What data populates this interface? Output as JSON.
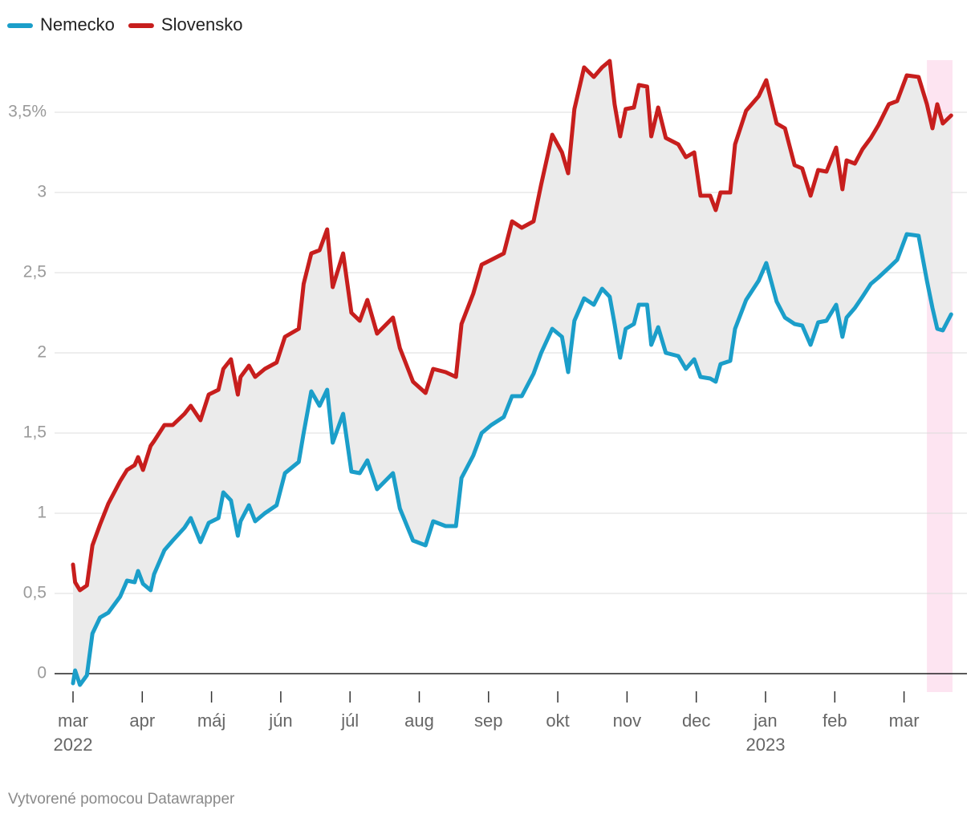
{
  "chart_data": {
    "type": "line",
    "x": [
      0,
      0.03,
      0.1,
      0.2,
      0.28,
      0.39,
      0.51,
      0.68,
      0.78,
      0.89,
      0.94,
      1.01,
      1.12,
      1.17,
      1.32,
      1.44,
      1.61,
      1.7,
      1.84,
      1.96,
      2.1,
      2.17,
      2.28,
      2.38,
      2.42,
      2.54,
      2.63,
      2.77,
      2.94,
      3.06,
      3.26,
      3.33,
      3.44,
      3.56,
      3.67,
      3.75,
      3.9,
      4.02,
      4.14,
      4.25,
      4.39,
      4.62,
      4.72,
      4.91,
      5.09,
      5.2,
      5.38,
      5.53,
      5.61,
      5.78,
      5.9,
      6.04,
      6.22,
      6.34,
      6.48,
      6.65,
      6.76,
      6.92,
      7.06,
      7.15,
      7.24,
      7.38,
      7.52,
      7.64,
      7.75,
      7.82,
      7.9,
      7.98,
      8.1,
      8.17,
      8.29,
      8.35,
      8.45,
      8.56,
      8.74,
      8.85,
      8.97,
      9.06,
      9.2,
      9.28,
      9.35,
      9.49,
      9.56,
      9.72,
      9.9,
      10.01,
      10.16,
      10.28,
      10.42,
      10.53,
      10.65,
      10.76,
      10.88,
      11.02,
      11.11,
      11.17,
      11.29,
      11.4,
      11.52,
      11.63,
      11.78,
      11.9,
      12.04,
      12.21,
      12.33,
      12.41,
      12.48,
      12.56,
      12.68
    ],
    "series": [
      {
        "name": "Nemecko",
        "color": "#1b9ec9",
        "values": [
          -0.06,
          0.02,
          -0.07,
          -0.01,
          0.25,
          0.35,
          0.38,
          0.48,
          0.58,
          0.57,
          0.64,
          0.56,
          0.52,
          0.62,
          0.77,
          0.83,
          0.91,
          0.97,
          0.82,
          0.94,
          0.97,
          1.13,
          1.08,
          0.86,
          0.95,
          1.05,
          0.95,
          1.0,
          1.05,
          1.25,
          1.32,
          1.5,
          1.76,
          1.67,
          1.77,
          1.44,
          1.62,
          1.26,
          1.25,
          1.33,
          1.15,
          1.25,
          1.03,
          0.83,
          0.8,
          0.95,
          0.92,
          0.92,
          1.22,
          1.36,
          1.5,
          1.55,
          1.6,
          1.73,
          1.73,
          1.87,
          2.0,
          2.15,
          2.1,
          1.88,
          2.2,
          2.34,
          2.3,
          2.4,
          2.35,
          2.18,
          1.97,
          2.15,
          2.18,
          2.3,
          2.3,
          2.05,
          2.16,
          2.0,
          1.98,
          1.9,
          1.96,
          1.85,
          1.84,
          1.82,
          1.93,
          1.95,
          2.15,
          2.33,
          2.45,
          2.56,
          2.32,
          2.22,
          2.18,
          2.17,
          2.05,
          2.19,
          2.2,
          2.3,
          2.1,
          2.22,
          2.28,
          2.35,
          2.43,
          2.47,
          2.53,
          2.58,
          2.74,
          2.73,
          2.45,
          2.28,
          2.15,
          2.14,
          2.24
        ]
      },
      {
        "name": "Slovensko",
        "color": "#c71e1d",
        "values": [
          0.68,
          0.57,
          0.52,
          0.55,
          0.8,
          0.93,
          1.06,
          1.2,
          1.27,
          1.3,
          1.35,
          1.27,
          1.42,
          1.45,
          1.55,
          1.55,
          1.62,
          1.67,
          1.58,
          1.74,
          1.77,
          1.9,
          1.96,
          1.74,
          1.85,
          1.92,
          1.85,
          1.9,
          1.94,
          2.1,
          2.15,
          2.43,
          2.62,
          2.64,
          2.77,
          2.41,
          2.62,
          2.25,
          2.2,
          2.33,
          2.12,
          2.22,
          2.03,
          1.82,
          1.75,
          1.9,
          1.88,
          1.85,
          2.18,
          2.37,
          2.55,
          2.58,
          2.62,
          2.82,
          2.78,
          2.82,
          3.05,
          3.36,
          3.25,
          3.12,
          3.52,
          3.78,
          3.72,
          3.78,
          3.82,
          3.55,
          3.35,
          3.52,
          3.53,
          3.67,
          3.66,
          3.35,
          3.53,
          3.34,
          3.3,
          3.22,
          3.25,
          2.98,
          2.98,
          2.89,
          3.0,
          3.0,
          3.3,
          3.51,
          3.6,
          3.7,
          3.43,
          3.4,
          3.17,
          3.15,
          2.98,
          3.14,
          3.13,
          3.28,
          3.02,
          3.2,
          3.18,
          3.27,
          3.34,
          3.42,
          3.55,
          3.57,
          3.73,
          3.72,
          3.55,
          3.4,
          3.55,
          3.43,
          3.48
        ]
      }
    ],
    "xlim": [
      0,
      12.7
    ],
    "xticks": [
      {
        "value": 0,
        "label": "mar"
      },
      {
        "value": 1,
        "label": "apr"
      },
      {
        "value": 2,
        "label": "máj"
      },
      {
        "value": 3,
        "label": "jún"
      },
      {
        "value": 4,
        "label": "júl"
      },
      {
        "value": 5,
        "label": "aug"
      },
      {
        "value": 6,
        "label": "sep"
      },
      {
        "value": 7,
        "label": "okt"
      },
      {
        "value": 8,
        "label": "nov"
      },
      {
        "value": 9,
        "label": "dec"
      },
      {
        "value": 10,
        "label": "jan"
      },
      {
        "value": 11,
        "label": "feb"
      },
      {
        "value": 12,
        "label": "mar"
      }
    ],
    "year_labels": [
      {
        "value": 0,
        "label": "2022"
      },
      {
        "value": 10,
        "label": "2023"
      }
    ],
    "ylim": [
      -0.115,
      3.825
    ],
    "yticks": [
      0,
      {
        "value": 0.5,
        "label": "0,5"
      },
      1,
      {
        "value": 1.5,
        "label": "1,5"
      },
      2,
      {
        "value": 2.5,
        "label": "2,5"
      },
      3,
      {
        "value": 3.5,
        "label": "3,5%"
      }
    ],
    "grid": true,
    "fill_between": "#ebebeb",
    "highlight_range": [
      12.33,
      12.7
    ],
    "highlight_color": "#fde4f1",
    "legend": "top-left",
    "footer": "Vytvorené pomocou Datawrapper"
  }
}
